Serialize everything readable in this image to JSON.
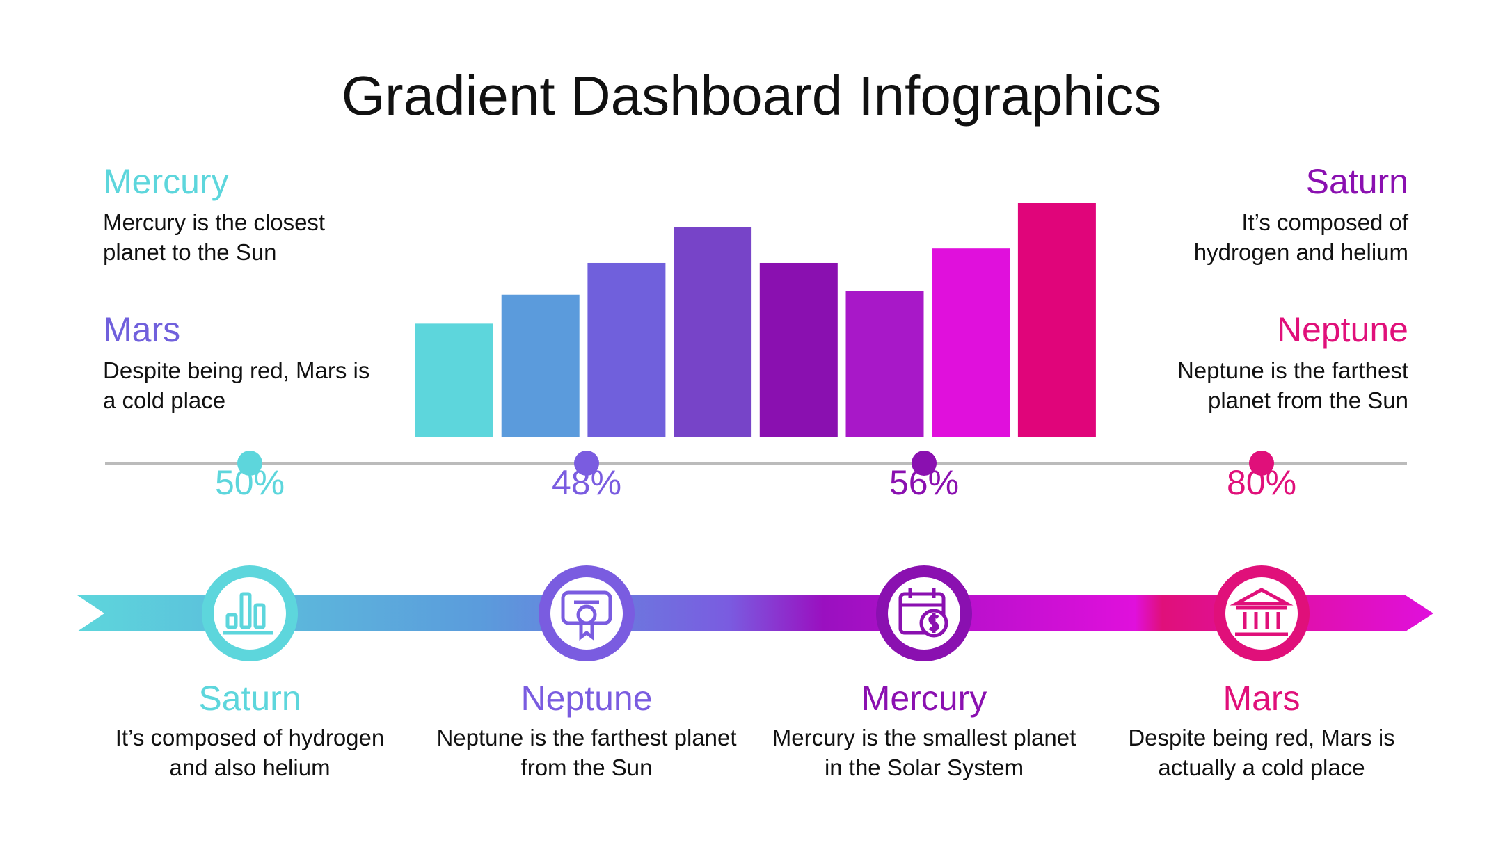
{
  "title": "Gradient Dashboard Infographics",
  "chart_data": {
    "type": "bar",
    "categories": [
      null,
      null,
      null,
      null,
      null,
      null,
      null,
      null
    ],
    "values": [
      118,
      148,
      181,
      218,
      181,
      152,
      196,
      243
    ],
    "colors": [
      "#5dd6dc",
      "#5b9bdc",
      "#7060dc",
      "#7744c8",
      "#8a10b0",
      "#a818c8",
      "#e010dc",
      "#e0057a"
    ]
  },
  "side_notes": [
    {
      "heading": "Mercury",
      "text": "Mercury is the closest planet to the Sun",
      "color": "#5dd6dc",
      "side": "left"
    },
    {
      "heading": "Mars",
      "text": "Despite being red, Mars is a cold place",
      "color": "#7060dc",
      "side": "left"
    },
    {
      "heading": "Saturn",
      "text": "It’s composed of hydrogen and helium",
      "color": "#8a10b0",
      "side": "right"
    },
    {
      "heading": "Neptune",
      "text": "Neptune is the farthest planet from the Sun",
      "color": "#e0107a",
      "side": "right"
    }
  ],
  "timeline": [
    {
      "percent": "50%",
      "heading": "Saturn",
      "text": "It’s composed of hydrogen and also helium",
      "color": "#5dd6dc"
    },
    {
      "percent": "48%",
      "heading": "Neptune",
      "text": "Neptune is the farthest planet from the Sun",
      "color": "#7a5ce0"
    },
    {
      "percent": "56%",
      "heading": "Mercury",
      "text": "Mercury is the smallest planet in the Solar System",
      "color": "#8a10b0"
    },
    {
      "percent": "80%",
      "heading": "Mars",
      "text": "Despite being red, Mars is actually a cold place",
      "color": "#e0107a"
    }
  ]
}
